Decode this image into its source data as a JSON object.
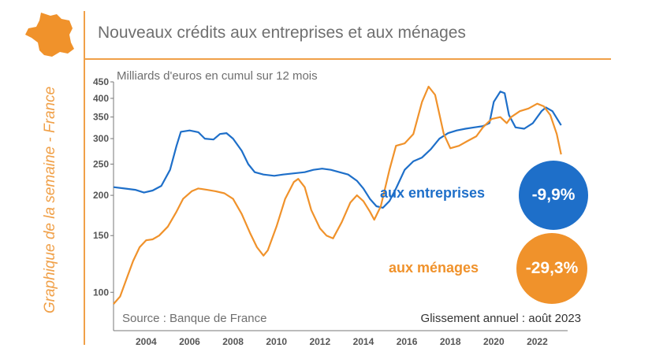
{
  "title": "Nouveaux crédits aux entreprises et aux ménages",
  "side_label": "Graphique de la semaine - France",
  "source": "Source : Banque de France",
  "yoy_label": "Glissement annuel : août 2023",
  "colors": {
    "entreprises": "#1e6fc9",
    "menages": "#f0922b",
    "accent": "#f0a048",
    "text": "#6f6f6f"
  },
  "map_icon": "france-map-icon",
  "chart_data": {
    "type": "line",
    "title": "Nouveaux crédits aux entreprises et aux ménages",
    "ylabel": "Milliards d'euros en cumul sur 12 mois",
    "xlabel": "",
    "y_scale": "log",
    "ylim": [
      90,
      450
    ],
    "xlim": [
      2003.0,
      2023.9
    ],
    "yticks": [
      100,
      150,
      200,
      250,
      300,
      350,
      400,
      450
    ],
    "xticks": [
      2004,
      2006,
      2008,
      2010,
      2012,
      2014,
      2016,
      2018,
      2020,
      2022
    ],
    "grid": false,
    "series": [
      {
        "name": "aux entreprises",
        "key": "entreprises",
        "annual_change": "-9,9%",
        "points": [
          [
            2003.0,
            212
          ],
          [
            2003.5,
            210
          ],
          [
            2004.0,
            208
          ],
          [
            2004.4,
            204
          ],
          [
            2004.8,
            207
          ],
          [
            2005.2,
            214
          ],
          [
            2005.6,
            240
          ],
          [
            2005.9,
            285
          ],
          [
            2006.1,
            315
          ],
          [
            2006.5,
            318
          ],
          [
            2006.9,
            314
          ],
          [
            2007.2,
            300
          ],
          [
            2007.6,
            298
          ],
          [
            2007.9,
            310
          ],
          [
            2008.2,
            312
          ],
          [
            2008.5,
            300
          ],
          [
            2008.9,
            275
          ],
          [
            2009.2,
            250
          ],
          [
            2009.5,
            236
          ],
          [
            2009.9,
            232
          ],
          [
            2010.4,
            230
          ],
          [
            2010.8,
            232
          ],
          [
            2011.3,
            234
          ],
          [
            2011.8,
            236
          ],
          [
            2012.2,
            240
          ],
          [
            2012.6,
            242
          ],
          [
            2013.0,
            240
          ],
          [
            2013.4,
            236
          ],
          [
            2013.8,
            232
          ],
          [
            2014.2,
            222
          ],
          [
            2014.5,
            210
          ],
          [
            2014.8,
            195
          ],
          [
            2015.1,
            185
          ],
          [
            2015.4,
            183
          ],
          [
            2015.7,
            192
          ],
          [
            2016.0,
            210
          ],
          [
            2016.4,
            240
          ],
          [
            2016.8,
            255
          ],
          [
            2017.2,
            262
          ],
          [
            2017.6,
            278
          ],
          [
            2018.0,
            300
          ],
          [
            2018.4,
            312
          ],
          [
            2018.8,
            318
          ],
          [
            2019.2,
            322
          ],
          [
            2019.6,
            325
          ],
          [
            2020.0,
            328
          ],
          [
            2020.3,
            335
          ],
          [
            2020.5,
            390
          ],
          [
            2020.8,
            420
          ],
          [
            2021.0,
            415
          ],
          [
            2021.2,
            355
          ],
          [
            2021.5,
            325
          ],
          [
            2021.9,
            322
          ],
          [
            2022.3,
            335
          ],
          [
            2022.7,
            365
          ],
          [
            2022.9,
            375
          ],
          [
            2023.2,
            365
          ],
          [
            2023.6,
            330
          ]
        ]
      },
      {
        "name": "aux ménages",
        "key": "menages",
        "annual_change": "-29,3%",
        "points": [
          [
            2003.0,
            92
          ],
          [
            2003.3,
            97
          ],
          [
            2003.6,
            110
          ],
          [
            2003.9,
            125
          ],
          [
            2004.2,
            138
          ],
          [
            2004.5,
            145
          ],
          [
            2004.8,
            146
          ],
          [
            2005.1,
            150
          ],
          [
            2005.5,
            160
          ],
          [
            2005.9,
            178
          ],
          [
            2006.2,
            195
          ],
          [
            2006.6,
            206
          ],
          [
            2006.9,
            210
          ],
          [
            2007.3,
            208
          ],
          [
            2007.7,
            206
          ],
          [
            2008.1,
            203
          ],
          [
            2008.5,
            195
          ],
          [
            2008.9,
            175
          ],
          [
            2009.3,
            152
          ],
          [
            2009.6,
            138
          ],
          [
            2009.9,
            130
          ],
          [
            2010.1,
            135
          ],
          [
            2010.5,
            160
          ],
          [
            2010.9,
            195
          ],
          [
            2011.3,
            220
          ],
          [
            2011.5,
            225
          ],
          [
            2011.8,
            212
          ],
          [
            2012.1,
            180
          ],
          [
            2012.5,
            158
          ],
          [
            2012.8,
            150
          ],
          [
            2013.1,
            147
          ],
          [
            2013.5,
            165
          ],
          [
            2013.9,
            190
          ],
          [
            2014.2,
            200
          ],
          [
            2014.5,
            192
          ],
          [
            2014.8,
            178
          ],
          [
            2015.0,
            168
          ],
          [
            2015.3,
            185
          ],
          [
            2015.7,
            240
          ],
          [
            2016.0,
            285
          ],
          [
            2016.4,
            290
          ],
          [
            2016.8,
            310
          ],
          [
            2017.2,
            390
          ],
          [
            2017.5,
            435
          ],
          [
            2017.8,
            410
          ],
          [
            2018.2,
            310
          ],
          [
            2018.5,
            280
          ],
          [
            2018.9,
            285
          ],
          [
            2019.3,
            295
          ],
          [
            2019.7,
            305
          ],
          [
            2020.0,
            325
          ],
          [
            2020.4,
            345
          ],
          [
            2020.8,
            350
          ],
          [
            2021.1,
            335
          ],
          [
            2021.3,
            350
          ],
          [
            2021.7,
            365
          ],
          [
            2022.1,
            372
          ],
          [
            2022.5,
            385
          ],
          [
            2022.8,
            378
          ],
          [
            2023.1,
            355
          ],
          [
            2023.4,
            310
          ],
          [
            2023.6,
            268
          ]
        ]
      }
    ]
  }
}
